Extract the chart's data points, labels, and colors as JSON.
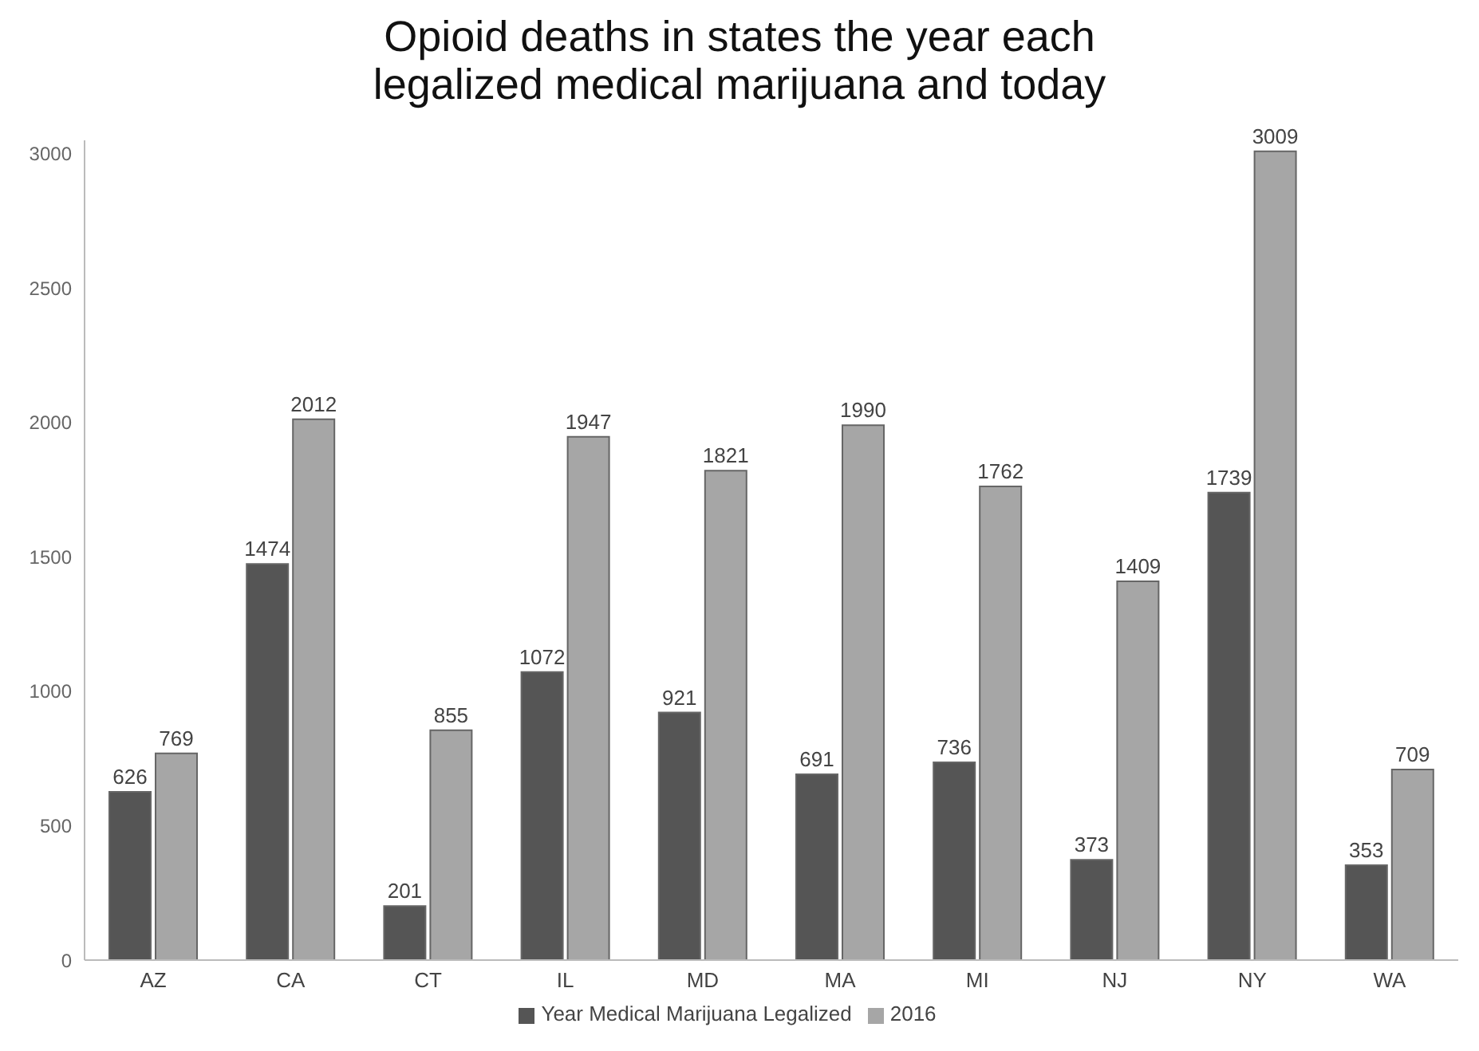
{
  "chart_data": {
    "type": "bar",
    "title": "Opioid deaths in states the year each\nlegalized medical marijuana and today",
    "categories": [
      "AZ",
      "CA",
      "CT",
      "IL",
      "MD",
      "MA",
      "MI",
      "NJ",
      "NY",
      "WA"
    ],
    "series": [
      {
        "name": "Year Medical Marijuana Legalized",
        "color": "#555555",
        "values": [
          626,
          1474,
          201,
          1072,
          921,
          691,
          736,
          373,
          1739,
          353
        ]
      },
      {
        "name": "2016",
        "color": "#a6a6a6",
        "values": [
          769,
          2012,
          855,
          1947,
          1821,
          1990,
          1762,
          1409,
          3009,
          709
        ]
      }
    ],
    "ylim": [
      0,
      3050
    ],
    "yticks": [
      0,
      500,
      1000,
      1500,
      2000,
      2500,
      3000
    ],
    "grid": false,
    "legend": "bottom",
    "data_labels": true
  }
}
